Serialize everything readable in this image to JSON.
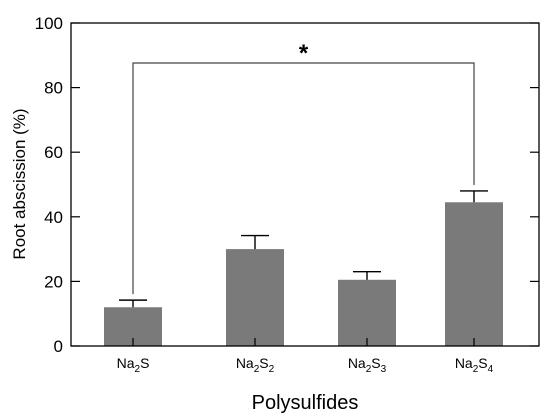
{
  "chart_data": {
    "type": "bar",
    "categories": [
      {
        "base": "Na",
        "sub1": "2",
        "mid": "S",
        "sub2": ""
      },
      {
        "base": "Na",
        "sub1": "2",
        "mid": "S",
        "sub2": "2"
      },
      {
        "base": "Na",
        "sub1": "2",
        "mid": "S",
        "sub2": "3"
      },
      {
        "base": "Na",
        "sub1": "2",
        "mid": "S",
        "sub2": "4"
      }
    ],
    "values": [
      12,
      30,
      20.5,
      44.5
    ],
    "errors": [
      2.2,
      4.2,
      2.5,
      3.5
    ],
    "xlabel": "Polysulfides",
    "ylabel": "Root abscission (%)",
    "ylim": [
      0,
      100
    ],
    "yticks": [
      0,
      20,
      40,
      60,
      80,
      100
    ],
    "bar_color": "#7a7a7a",
    "significance": {
      "from_index": 0,
      "to_index": 3,
      "label": "*"
    }
  }
}
